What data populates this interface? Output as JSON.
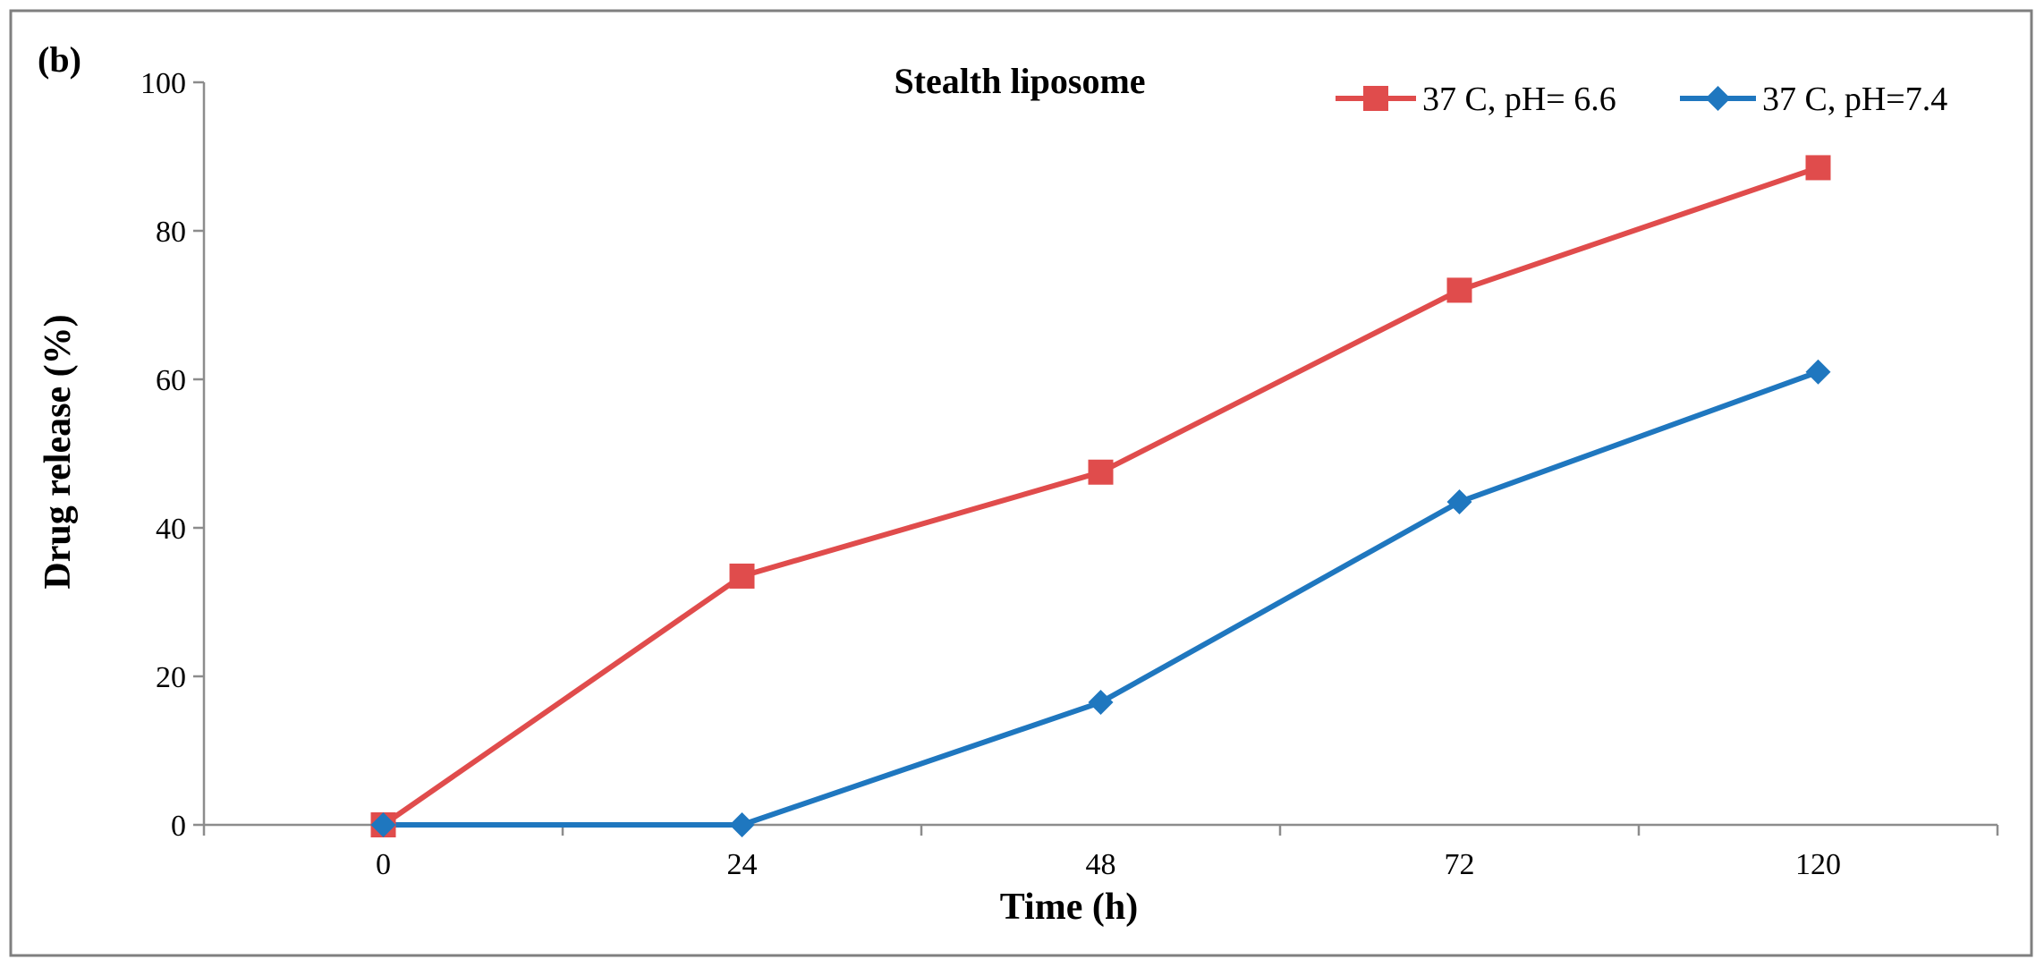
{
  "chart_data": {
    "type": "line",
    "panel_label": "(b)",
    "title": "Stealth liposome",
    "xlabel": "Time (h)",
    "ylabel": "Drug release (%)",
    "categories": [
      "0",
      "24",
      "48",
      "72",
      "120"
    ],
    "ylim": [
      0,
      100
    ],
    "yticks": [
      "0",
      "20",
      "40",
      "60",
      "80",
      "100"
    ],
    "grid": false,
    "legend_position": "top-right",
    "series": [
      {
        "name": "37 C, pH= 6.6",
        "values": [
          0,
          33.5,
          47.5,
          72,
          88.5
        ],
        "color": "#e04c4c",
        "marker": "square"
      },
      {
        "name": "37 C, pH=7.4",
        "values": [
          0,
          0,
          16.5,
          43.5,
          61
        ],
        "color": "#1f77bf",
        "marker": "diamond"
      }
    ]
  }
}
